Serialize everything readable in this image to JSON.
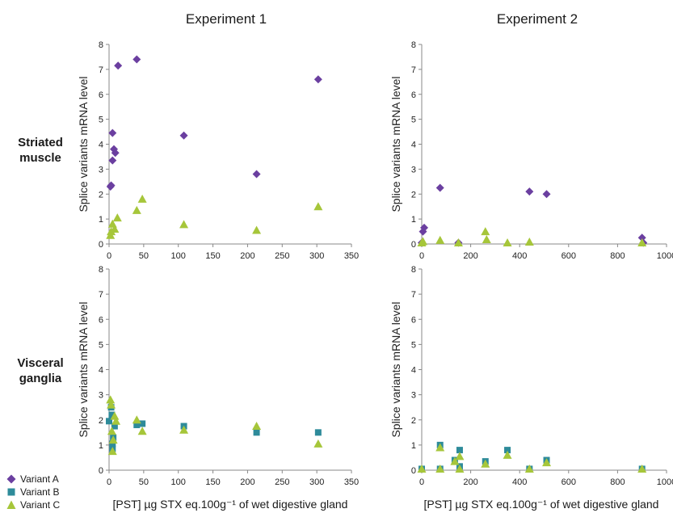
{
  "column_titles": [
    "Experiment 1",
    "Experiment 2"
  ],
  "row_labels": [
    [
      "Striated",
      "muscle"
    ],
    [
      "Visceral",
      "ganglia"
    ]
  ],
  "xlabel": "[PST] µg STX eq.100g⁻¹ of wet digestive gland",
  "ylabel": "Splice variants mRNA level",
  "legend": [
    {
      "name": "Variant A",
      "color": "#6b3fa0",
      "marker": "diamond"
    },
    {
      "name": "Variant B",
      "color": "#2e8b9a",
      "marker": "square"
    },
    {
      "name": "Variant C",
      "color": "#a6c63a",
      "marker": "triangle"
    }
  ],
  "chart_data": [
    {
      "type": "scatter",
      "title": "",
      "panel": "Experiment 1 / Striated muscle",
      "xlabel": "",
      "ylabel": "Splice variants mRNA level",
      "xlim": [
        0,
        350
      ],
      "ylim": [
        0,
        8
      ],
      "xticks": [
        0,
        50,
        100,
        150,
        200,
        250,
        300,
        350
      ],
      "yticks": [
        0,
        1,
        2,
        3,
        4,
        5,
        6,
        7,
        8
      ],
      "series": [
        {
          "name": "Variant A",
          "x": [
            2,
            3,
            5,
            5,
            7,
            9,
            13,
            40,
            108,
            213,
            302
          ],
          "y": [
            2.3,
            2.35,
            4.45,
            3.35,
            3.8,
            3.65,
            7.15,
            7.4,
            4.35,
            2.8,
            6.6
          ]
        },
        {
          "name": "Variant C",
          "x": [
            2,
            3,
            5,
            8,
            12,
            40,
            48,
            108,
            213,
            302
          ],
          "y": [
            0.35,
            0.5,
            0.8,
            0.6,
            1.05,
            1.35,
            1.8,
            0.78,
            0.55,
            1.5
          ]
        }
      ]
    },
    {
      "type": "scatter",
      "title": "",
      "panel": "Experiment 2 / Striated muscle",
      "xlabel": "",
      "ylabel": "Splice variants mRNA level",
      "xlim": [
        0,
        1000
      ],
      "ylim": [
        0,
        8
      ],
      "xticks": [
        0,
        200,
        400,
        600,
        800,
        1000
      ],
      "yticks": [
        0,
        1,
        2,
        3,
        4,
        5,
        6,
        7,
        8
      ],
      "series": [
        {
          "name": "Variant A",
          "x": [
            0,
            5,
            10,
            75,
            150,
            440,
            510,
            900,
            905
          ],
          "y": [
            0.05,
            0.5,
            0.65,
            2.25,
            0.05,
            2.1,
            2.0,
            0.25,
            0.05
          ]
        },
        {
          "name": "Variant C",
          "x": [
            0,
            5,
            75,
            150,
            260,
            265,
            350,
            440,
            900
          ],
          "y": [
            0.05,
            0.1,
            0.15,
            0.05,
            0.5,
            0.18,
            0.05,
            0.08,
            0.05
          ]
        }
      ]
    },
    {
      "type": "scatter",
      "title": "",
      "panel": "Experiment 1 / Visceral ganglia",
      "xlabel": "[PST] µg STX eq.100g⁻¹ of wet digestive gland",
      "ylabel": "Splice variants mRNA level",
      "xlim": [
        0,
        350
      ],
      "ylim": [
        0,
        8
      ],
      "xticks": [
        0,
        50,
        100,
        150,
        200,
        250,
        300,
        350
      ],
      "yticks": [
        0,
        1,
        2,
        3,
        4,
        5,
        6,
        7,
        8
      ],
      "series": [
        {
          "name": "Variant B",
          "x": [
            0,
            3,
            4,
            5,
            5,
            6,
            8,
            40,
            48,
            108,
            213,
            302
          ],
          "y": [
            1.95,
            2.5,
            2.2,
            0.85,
            1.05,
            1.3,
            1.75,
            1.8,
            1.85,
            1.75,
            1.5,
            1.5
          ]
        },
        {
          "name": "Variant C",
          "x": [
            2,
            3,
            4,
            5,
            6,
            8,
            10,
            40,
            48,
            108,
            213,
            302
          ],
          "y": [
            2.8,
            2.6,
            1.55,
            0.75,
            1.2,
            2.15,
            1.95,
            2.0,
            1.55,
            1.6,
            1.75,
            1.05
          ]
        }
      ]
    },
    {
      "type": "scatter",
      "title": "",
      "panel": "Experiment 2 / Visceral ganglia",
      "xlabel": "[PST] µg STX eq.100g⁻¹ of wet digestive gland",
      "ylabel": "Splice variants mRNA level",
      "xlim": [
        0,
        1000
      ],
      "ylim": [
        0,
        8
      ],
      "xticks": [
        0,
        200,
        400,
        600,
        800,
        1000
      ],
      "yticks": [
        0,
        1,
        2,
        3,
        4,
        5,
        6,
        7,
        8
      ],
      "series": [
        {
          "name": "Variant B",
          "x": [
            0,
            75,
            75,
            135,
            155,
            155,
            260,
            350,
            440,
            510,
            900
          ],
          "y": [
            0.05,
            1.0,
            0.05,
            0.4,
            0.8,
            0.15,
            0.35,
            0.8,
            0.05,
            0.4,
            0.05
          ]
        },
        {
          "name": "Variant C",
          "x": [
            0,
            75,
            75,
            135,
            155,
            155,
            260,
            350,
            440,
            510,
            900
          ],
          "y": [
            0.05,
            0.9,
            0.05,
            0.35,
            0.55,
            0.05,
            0.25,
            0.6,
            0.05,
            0.3,
            0.05
          ]
        }
      ]
    }
  ]
}
